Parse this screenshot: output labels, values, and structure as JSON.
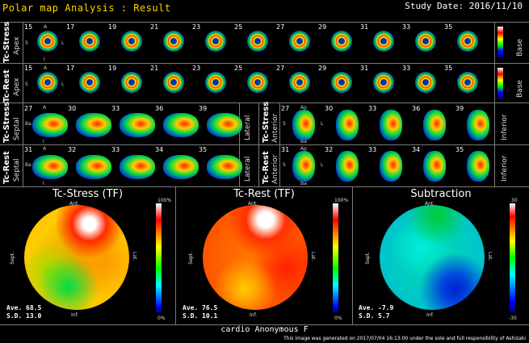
{
  "header": {
    "title": "Polar map Analysis : Result",
    "study_date": "Study Date: 2016/11/10"
  },
  "short_axis": {
    "slice_numbers": [
      "15",
      "17",
      "19",
      "21",
      "23",
      "25",
      "27",
      "29",
      "31",
      "33",
      "35"
    ],
    "stress_label": "Tc-Stress",
    "rest_label": "Tc-Rest",
    "apex_label": "Apex",
    "base_label": "Base",
    "orient_A": "A",
    "orient_S": "S",
    "orient_L": "L",
    "orient_I": "I"
  },
  "vla": {
    "stress_numbers": [
      "27",
      "30",
      "33",
      "36",
      "39"
    ],
    "rest_numbers": [
      "31",
      "32",
      "33",
      "34",
      "35"
    ],
    "stress_label": "Tc-Stress",
    "rest_label": "Tc-Rest",
    "septal_label": "Septal",
    "lateral_label": "Lateral",
    "orient_A": "A",
    "orient_Ba": "Ba",
    "orient_Ap": "Ap",
    "orient_I": "I"
  },
  "hla": {
    "stress_numbers": [
      "27",
      "30",
      "33",
      "36",
      "39"
    ],
    "rest_numbers": [
      "31",
      "32",
      "33",
      "34",
      "35"
    ],
    "stress_label": "Tc-Stress",
    "rest_label": "Tc-Rest",
    "anterior_label": "Anterior",
    "inferior_label": "Inferior",
    "orient_Ap": "Ap",
    "orient_S": "S",
    "orient_L": "L",
    "orient_Ba": "Ba"
  },
  "polar": {
    "stress": {
      "title": "Tc-Stress (TF)",
      "ave_label": "Ave.",
      "ave_value": "68.5",
      "sd_label": "S.D.",
      "sd_value": "13.0",
      "scale_top": "100%",
      "scale_bottom": "0%"
    },
    "rest": {
      "title": "Tc-Rest (TF)",
      "ave_label": "Ave.",
      "ave_value": "76.5",
      "sd_label": "S.D.",
      "sd_value": "10.1",
      "scale_top": "100%",
      "scale_bottom": "0%"
    },
    "subtraction": {
      "title": "Subtraction",
      "ave_label": "Ave.",
      "ave_value": "-7.9",
      "sd_label": "S.D.",
      "sd_value": "5.7",
      "scale_top": "30",
      "scale_bottom": "-30"
    },
    "ant": "Ant.",
    "inf": "Inf.",
    "sept": "Sept.",
    "lat": "Lat."
  },
  "footer": {
    "patient": "cardio  Anonymous   F",
    "note": "This image was generated on 2017/07/04 16:13:00 under the sole and full responsibility of Ashizaki"
  },
  "colors": {
    "title": "#ffd400",
    "divider": "#7a7a7a",
    "background": "#000000"
  }
}
